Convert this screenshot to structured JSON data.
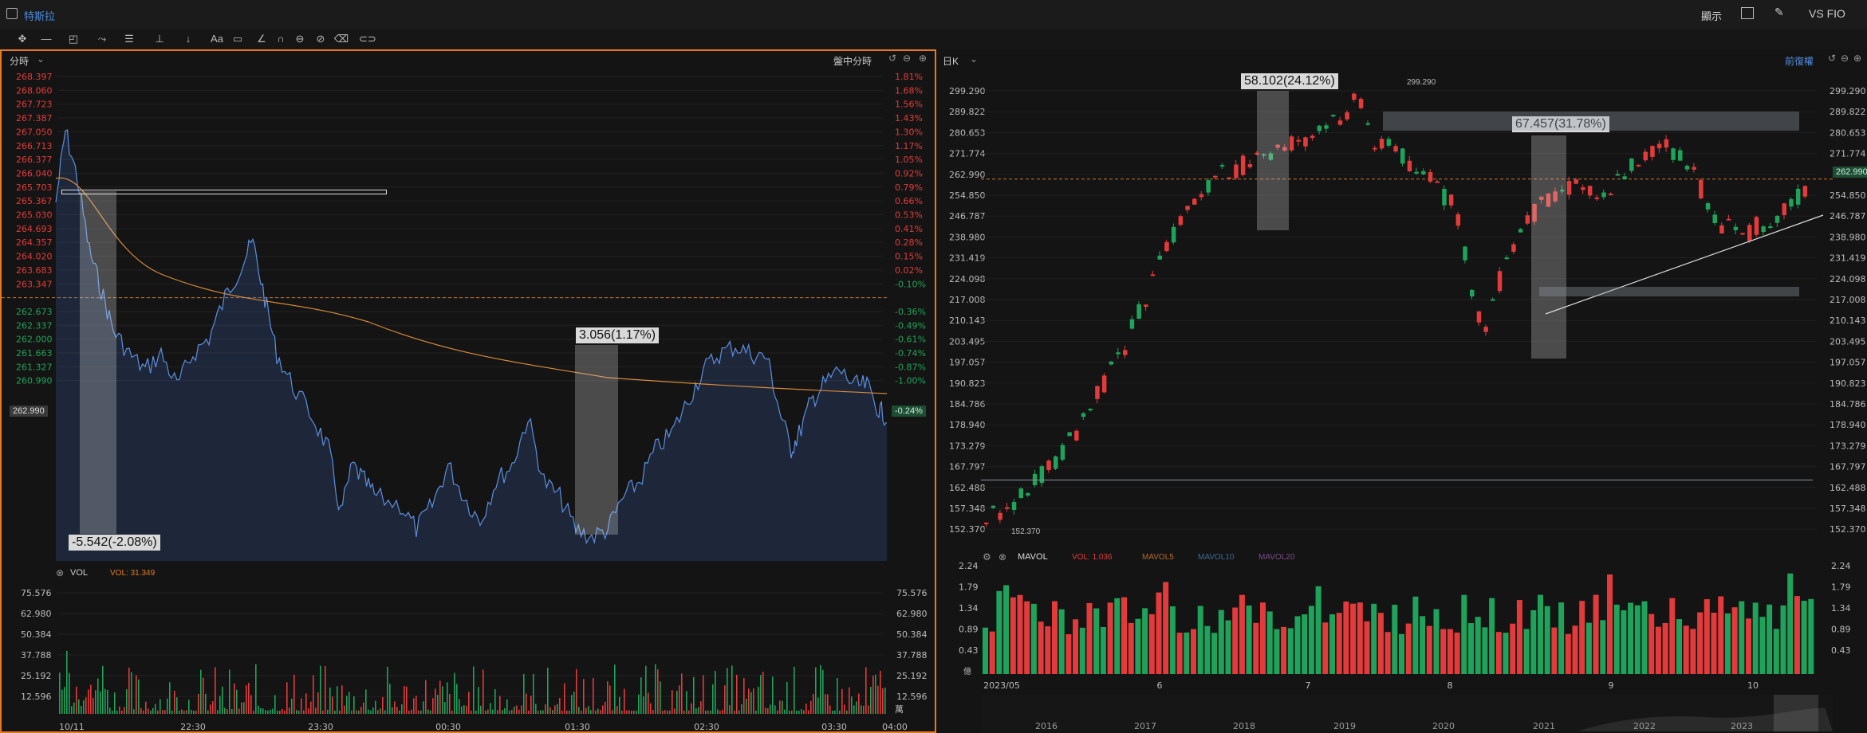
{
  "window": {
    "title": "特斯拉"
  },
  "header_right": {
    "display_label": "顯示",
    "vs_label": "VS FIO"
  },
  "left": {
    "period_label": "分時",
    "mode_label": "盤中分時",
    "price_ticks": [
      "268.397",
      "268.060",
      "267.723",
      "267.387",
      "267.050",
      "266.713",
      "266.377",
      "266.040",
      "265.703",
      "265.367",
      "265.030",
      "264.693",
      "264.357",
      "264.020",
      "263.683",
      "263.347",
      "262.990",
      "262.673",
      "262.337",
      "262.000",
      "261.663",
      "261.327",
      "260.990"
    ],
    "pct_ticks": [
      "1.81%",
      "1.68%",
      "1.56%",
      "1.43%",
      "1.30%",
      "1.17%",
      "1.05%",
      "0.92%",
      "0.79%",
      "0.66%",
      "0.53%",
      "0.41%",
      "0.28%",
      "0.15%",
      "0.02%",
      "-0.10%",
      "-0.24%",
      "-0.36%",
      "-0.49%",
      "-0.61%",
      "-0.74%",
      "-0.87%",
      "-1.00%"
    ],
    "current_price": "262.990",
    "current_pct": "-0.24%",
    "measure1": "-5.542(-2.08%)",
    "measure2": "3.056(1.17%)",
    "vol_label": "VOL",
    "vol_value": "VOL: 31.349",
    "vol_ticks": [
      "75.576",
      "62.980",
      "50.384",
      "37.788",
      "25.192",
      "12.596"
    ],
    "vol_unit": "萬",
    "time_ticks": [
      "10/11",
      "22:30",
      "23:30",
      "00:30",
      "01:30",
      "02:30",
      "03:30",
      "04:00"
    ],
    "colors": {
      "up": "#e33b3b",
      "down": "#1fa35a",
      "line": "#5b8fe0",
      "avg": "#d98a3a",
      "accent": "#e67a22"
    }
  },
  "right": {
    "period_label": "日K",
    "adjust_label": "前復權",
    "price_ticks": [
      "299.290",
      "289.822",
      "280.653",
      "271.774",
      "262.990",
      "254.850",
      "246.787",
      "238.980",
      "231.419",
      "224.098",
      "217.008",
      "210.143",
      "203.495",
      "197.057",
      "190.823",
      "184.786",
      "178.940",
      "173.279",
      "167.797",
      "162.488",
      "157.348",
      "152.370"
    ],
    "high_label": "299.290",
    "low_label": "152.370",
    "current_price": "262.990",
    "measure1": "58.102(24.12%)",
    "measure2": "67.457(31.78%)",
    "vol_title": "MAVOL",
    "vol_value": "VOL: 1.036",
    "mavol5": "MAVOL5",
    "mavol10": "MAVOL10",
    "mavol20": "MAVOL20",
    "vol_ticks": [
      "2.24",
      "1.79",
      "1.34",
      "0.89",
      "0.43"
    ],
    "vol_unit": "億",
    "time_ticks": [
      "2023/05",
      "6",
      "7",
      "8",
      "9",
      "10"
    ],
    "year_ticks": [
      "2016",
      "2017",
      "2018",
      "2019",
      "2020",
      "2021",
      "2022",
      "2023"
    ]
  }
}
